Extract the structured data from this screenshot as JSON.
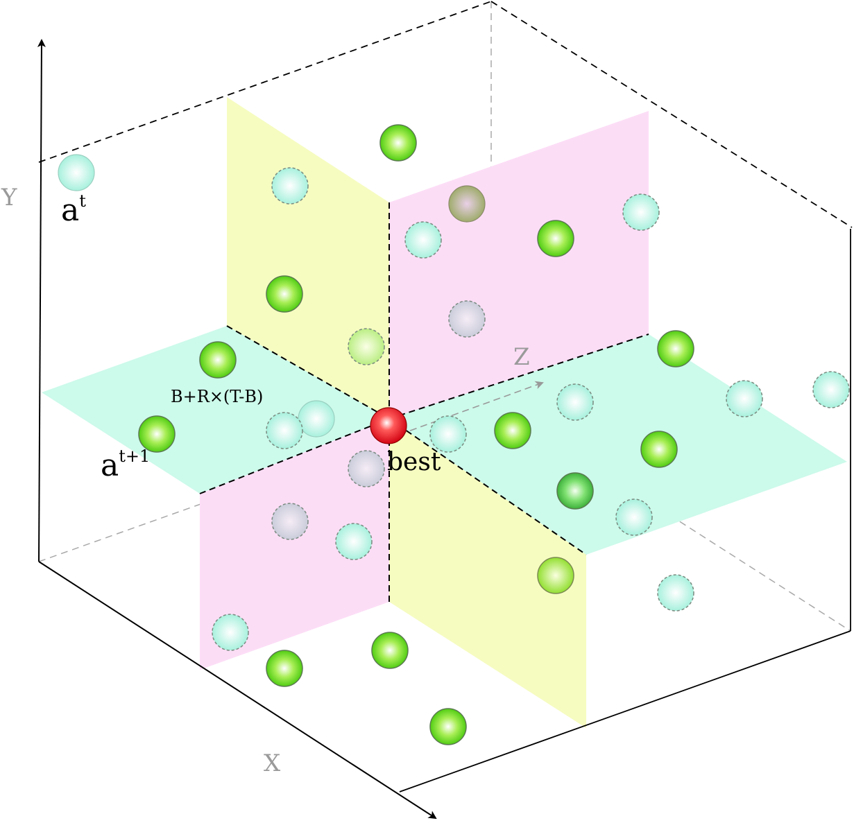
{
  "labels": {
    "x_axis": "X",
    "y_axis": "Y",
    "z_axis": "Z",
    "a_base": "a",
    "a_t_sup": "t",
    "a_t1_sup": "t+1",
    "best": "best",
    "formula": "B+R×(T-B)"
  },
  "colors": {
    "plane_xz": "#ccfaeb",
    "plane_yellow": "#f6fcc0",
    "plane_pink": "#fcddf6",
    "green_sphere": "#66e01a",
    "cyan_sphere": "#bff5e8",
    "gray_sphere": "#cfcfd8",
    "olive_sphere": "#a6b070",
    "red_sphere": "#e00010"
  }
}
